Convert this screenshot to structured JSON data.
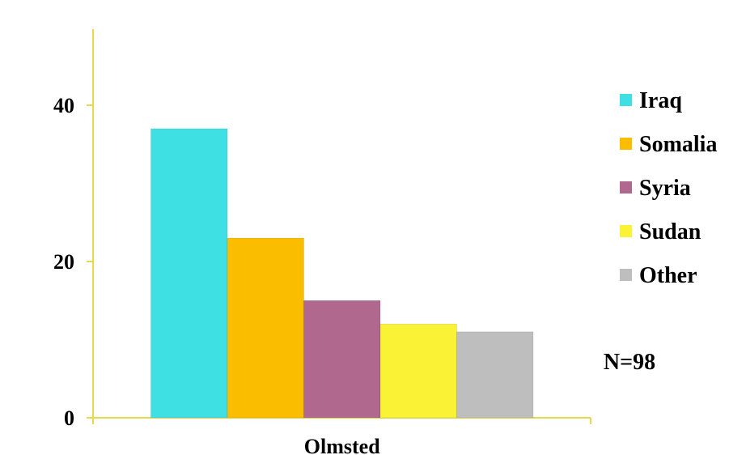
{
  "chart_data": {
    "type": "bar",
    "title": "",
    "categories": [
      "Olmsted"
    ],
    "series": [
      {
        "name": "Iraq",
        "values": [
          37
        ],
        "color": "#3fe0e3"
      },
      {
        "name": "Somalia",
        "values": [
          23
        ],
        "color": "#fbbd00"
      },
      {
        "name": "Syria",
        "values": [
          15
        ],
        "color": "#b0688f"
      },
      {
        "name": "Sudan",
        "values": [
          12
        ],
        "color": "#faf235"
      },
      {
        "name": "Other",
        "values": [
          11
        ],
        "color": "#bebebe"
      }
    ],
    "xlabel": "",
    "ylabel": "",
    "ylim": [
      0,
      50
    ],
    "yticks": [
      0,
      20,
      40
    ],
    "grid": false,
    "legend_placement": "right",
    "axis_color": "#e6d94a",
    "annotation": "N=98"
  }
}
